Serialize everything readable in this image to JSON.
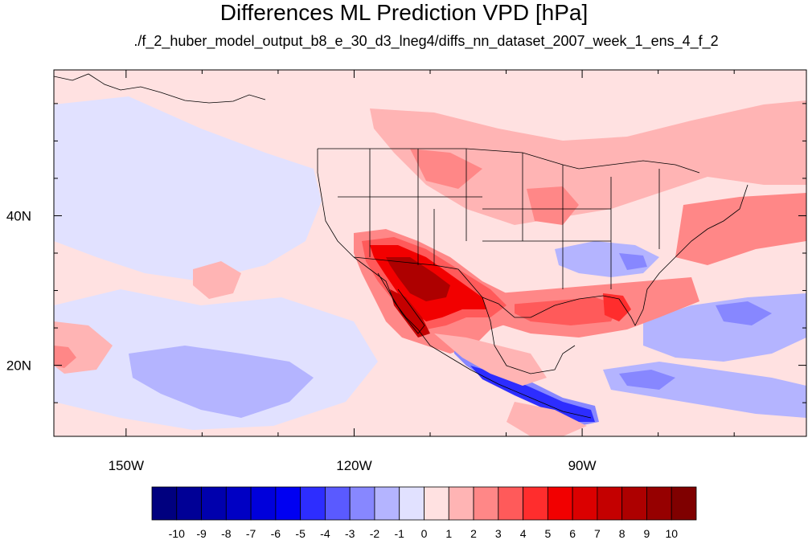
{
  "map": {
    "title": "Differences ML Prediction VPD [hPa]",
    "subtitle": "./f_2_huber_model_output_b8_e_30_d3_lneg4/diffs_nn_dataset_2007_week_1_ens_4_f_2",
    "x_ticks": [
      {
        "lon": -150,
        "label": "150W"
      },
      {
        "lon": -120,
        "label": "120W"
      },
      {
        "lon": -90,
        "label": "90W"
      }
    ],
    "y_ticks": [
      {
        "lat": 40,
        "label": "40N"
      },
      {
        "lat": 20,
        "label": "20N"
      }
    ],
    "lon_range": [
      -159.5,
      -60.5
    ],
    "lat_range": [
      10.5,
      59.5
    ],
    "colorbar": {
      "labels": [
        "-10",
        "-9",
        "-8",
        "-7",
        "-6",
        "-5",
        "-4",
        "-3",
        "-2",
        "-1",
        "0",
        "1",
        "2",
        "3",
        "4",
        "5",
        "6",
        "7",
        "8",
        "9",
        "10"
      ],
      "colors": [
        "#00007f",
        "#000096",
        "#0000ad",
        "#0000c4",
        "#0000db",
        "#0000f2",
        "#2d2dff",
        "#5a5aff",
        "#8787ff",
        "#b4b4ff",
        "#e1e1ff",
        "#ffe1e1",
        "#ffb4b4",
        "#ff8787",
        "#ff5a5a",
        "#ff2d2d",
        "#f20000",
        "#db0000",
        "#c40000",
        "#ad0000",
        "#960000",
        "#7f0000"
      ]
    }
  }
}
